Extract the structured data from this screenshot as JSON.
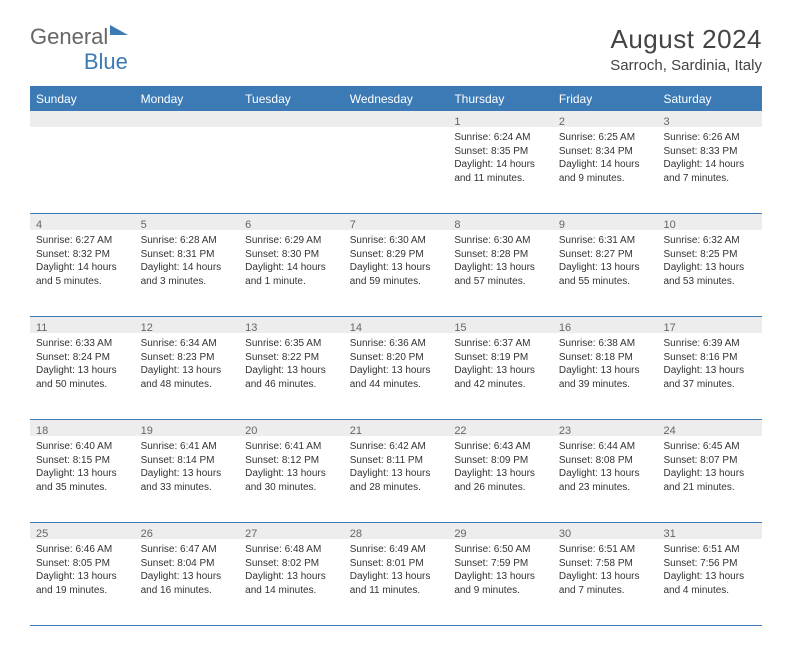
{
  "brand": {
    "part1": "General",
    "part2": "Blue"
  },
  "header": {
    "title": "August 2024",
    "location": "Sarroch, Sardinia, Italy"
  },
  "colors": {
    "accent": "#3b7ab5",
    "header_bg": "#3b7ab5",
    "header_text": "#ffffff",
    "daynum_bg": "#ededed",
    "text": "#333333",
    "border": "#3b7ab5"
  },
  "weekdays": [
    "Sunday",
    "Monday",
    "Tuesday",
    "Wednesday",
    "Thursday",
    "Friday",
    "Saturday"
  ],
  "weeks": [
    [
      null,
      null,
      null,
      null,
      {
        "day": "1",
        "sunrise": "6:24 AM",
        "sunset": "8:35 PM",
        "daylight": "14 hours and 11 minutes."
      },
      {
        "day": "2",
        "sunrise": "6:25 AM",
        "sunset": "8:34 PM",
        "daylight": "14 hours and 9 minutes."
      },
      {
        "day": "3",
        "sunrise": "6:26 AM",
        "sunset": "8:33 PM",
        "daylight": "14 hours and 7 minutes."
      }
    ],
    [
      {
        "day": "4",
        "sunrise": "6:27 AM",
        "sunset": "8:32 PM",
        "daylight": "14 hours and 5 minutes."
      },
      {
        "day": "5",
        "sunrise": "6:28 AM",
        "sunset": "8:31 PM",
        "daylight": "14 hours and 3 minutes."
      },
      {
        "day": "6",
        "sunrise": "6:29 AM",
        "sunset": "8:30 PM",
        "daylight": "14 hours and 1 minute."
      },
      {
        "day": "7",
        "sunrise": "6:30 AM",
        "sunset": "8:29 PM",
        "daylight": "13 hours and 59 minutes."
      },
      {
        "day": "8",
        "sunrise": "6:30 AM",
        "sunset": "8:28 PM",
        "daylight": "13 hours and 57 minutes."
      },
      {
        "day": "9",
        "sunrise": "6:31 AM",
        "sunset": "8:27 PM",
        "daylight": "13 hours and 55 minutes."
      },
      {
        "day": "10",
        "sunrise": "6:32 AM",
        "sunset": "8:25 PM",
        "daylight": "13 hours and 53 minutes."
      }
    ],
    [
      {
        "day": "11",
        "sunrise": "6:33 AM",
        "sunset": "8:24 PM",
        "daylight": "13 hours and 50 minutes."
      },
      {
        "day": "12",
        "sunrise": "6:34 AM",
        "sunset": "8:23 PM",
        "daylight": "13 hours and 48 minutes."
      },
      {
        "day": "13",
        "sunrise": "6:35 AM",
        "sunset": "8:22 PM",
        "daylight": "13 hours and 46 minutes."
      },
      {
        "day": "14",
        "sunrise": "6:36 AM",
        "sunset": "8:20 PM",
        "daylight": "13 hours and 44 minutes."
      },
      {
        "day": "15",
        "sunrise": "6:37 AM",
        "sunset": "8:19 PM",
        "daylight": "13 hours and 42 minutes."
      },
      {
        "day": "16",
        "sunrise": "6:38 AM",
        "sunset": "8:18 PM",
        "daylight": "13 hours and 39 minutes."
      },
      {
        "day": "17",
        "sunrise": "6:39 AM",
        "sunset": "8:16 PM",
        "daylight": "13 hours and 37 minutes."
      }
    ],
    [
      {
        "day": "18",
        "sunrise": "6:40 AM",
        "sunset": "8:15 PM",
        "daylight": "13 hours and 35 minutes."
      },
      {
        "day": "19",
        "sunrise": "6:41 AM",
        "sunset": "8:14 PM",
        "daylight": "13 hours and 33 minutes."
      },
      {
        "day": "20",
        "sunrise": "6:41 AM",
        "sunset": "8:12 PM",
        "daylight": "13 hours and 30 minutes."
      },
      {
        "day": "21",
        "sunrise": "6:42 AM",
        "sunset": "8:11 PM",
        "daylight": "13 hours and 28 minutes."
      },
      {
        "day": "22",
        "sunrise": "6:43 AM",
        "sunset": "8:09 PM",
        "daylight": "13 hours and 26 minutes."
      },
      {
        "day": "23",
        "sunrise": "6:44 AM",
        "sunset": "8:08 PM",
        "daylight": "13 hours and 23 minutes."
      },
      {
        "day": "24",
        "sunrise": "6:45 AM",
        "sunset": "8:07 PM",
        "daylight": "13 hours and 21 minutes."
      }
    ],
    [
      {
        "day": "25",
        "sunrise": "6:46 AM",
        "sunset": "8:05 PM",
        "daylight": "13 hours and 19 minutes."
      },
      {
        "day": "26",
        "sunrise": "6:47 AM",
        "sunset": "8:04 PM",
        "daylight": "13 hours and 16 minutes."
      },
      {
        "day": "27",
        "sunrise": "6:48 AM",
        "sunset": "8:02 PM",
        "daylight": "13 hours and 14 minutes."
      },
      {
        "day": "28",
        "sunrise": "6:49 AM",
        "sunset": "8:01 PM",
        "daylight": "13 hours and 11 minutes."
      },
      {
        "day": "29",
        "sunrise": "6:50 AM",
        "sunset": "7:59 PM",
        "daylight": "13 hours and 9 minutes."
      },
      {
        "day": "30",
        "sunrise": "6:51 AM",
        "sunset": "7:58 PM",
        "daylight": "13 hours and 7 minutes."
      },
      {
        "day": "31",
        "sunrise": "6:51 AM",
        "sunset": "7:56 PM",
        "daylight": "13 hours and 4 minutes."
      }
    ]
  ],
  "labels": {
    "sunrise_prefix": "Sunrise: ",
    "sunset_prefix": "Sunset: ",
    "daylight_prefix": "Daylight: "
  },
  "typography": {
    "title_fontsize": 26,
    "location_fontsize": 15,
    "weekday_fontsize": 12,
    "daynum_fontsize": 11,
    "info_fontsize": 10
  }
}
